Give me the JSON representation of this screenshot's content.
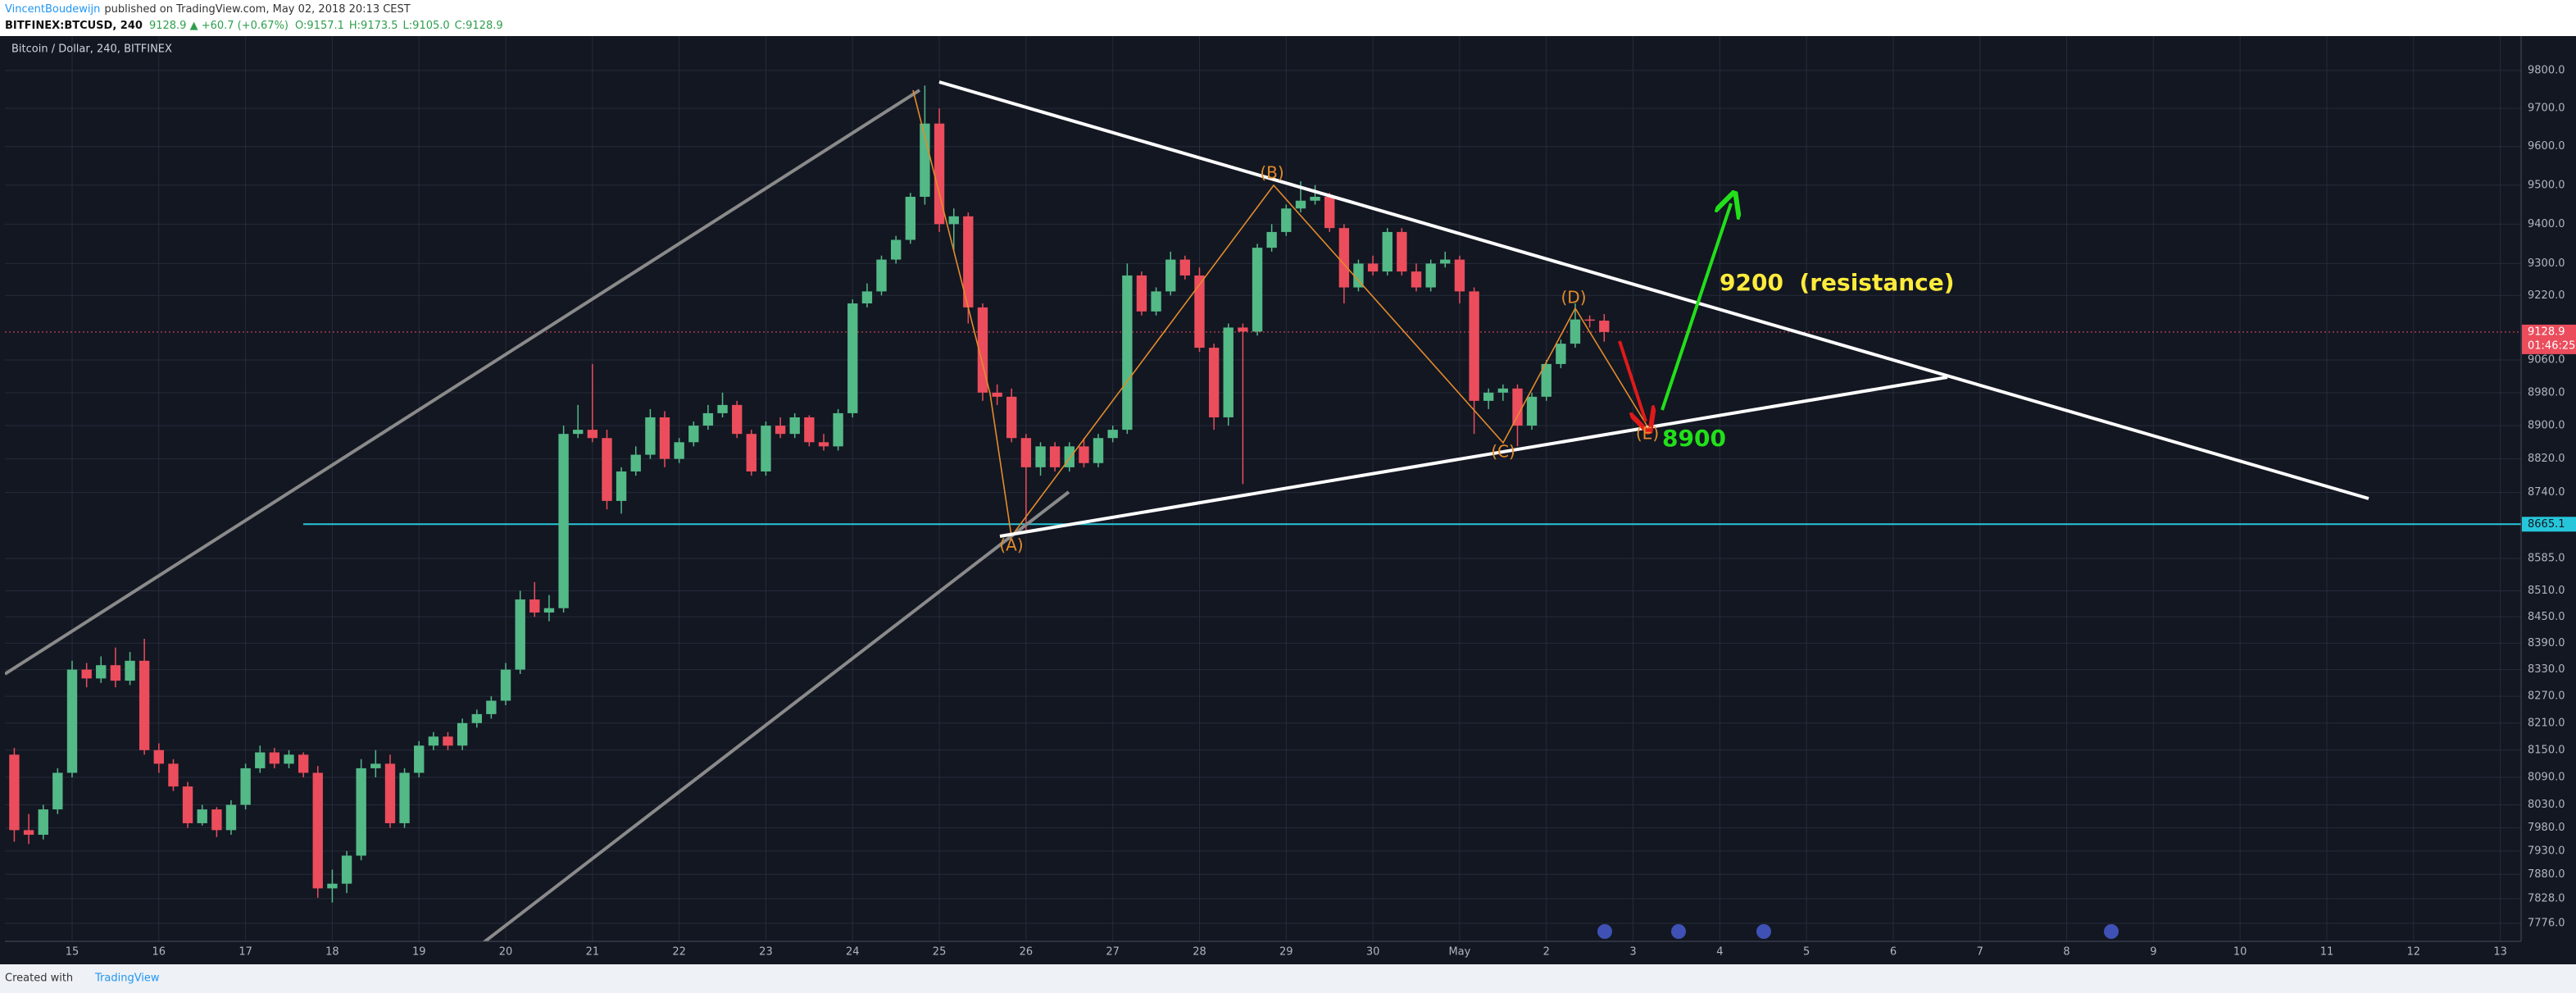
{
  "header": {
    "author": "VincentBoudewijn",
    "published": "published on TradingView.com, May 02, 2018 20:13 CEST",
    "symbol": "BITFINEX:BTCUSD, 240",
    "price": "9128.9 ▲ +60.7 (+0.67%)",
    "open": "O:9157.1",
    "high": "H:9173.5",
    "low": "L:9105.0",
    "close": "C:9128.9"
  },
  "footer": {
    "created": "Created with",
    "brand": "TradingView"
  },
  "chart_data": {
    "type": "candlestick",
    "title": "Bitcoin / Dollar, 240, BITFINEX",
    "log_scale": true,
    "grid": true,
    "up_color": "#53b987",
    "down_color": "#eb4d5c",
    "x": [
      14.333,
      14.5,
      14.667,
      14.833,
      15,
      15.167,
      15.333,
      15.5,
      15.667,
      15.833,
      16,
      16.167,
      16.333,
      16.5,
      16.667,
      16.833,
      17,
      17.167,
      17.333,
      17.5,
      17.667,
      17.833,
      18,
      18.167,
      18.333,
      18.5,
      18.667,
      18.833,
      19,
      19.167,
      19.333,
      19.5,
      19.667,
      19.833,
      20,
      20.167,
      20.333,
      20.5,
      20.667,
      20.833,
      21,
      21.167,
      21.333,
      21.5,
      21.667,
      21.833,
      22,
      22.167,
      22.333,
      22.5,
      22.667,
      22.833,
      23,
      23.167,
      23.333,
      23.5,
      23.667,
      23.833,
      24,
      24.167,
      24.333,
      24.5,
      24.667,
      24.833,
      25,
      25.167,
      25.333,
      25.5,
      25.667,
      25.833,
      26,
      26.167,
      26.333,
      26.5,
      26.667,
      26.833,
      27,
      27.167,
      27.333,
      27.5,
      27.667,
      27.833,
      28,
      28.167,
      28.333,
      28.5,
      28.667,
      28.833,
      29,
      29.167,
      29.333,
      29.5,
      29.667,
      29.833,
      30,
      30.167,
      30.333,
      30.5,
      30.667,
      30.833,
      31,
      31.167,
      31.333,
      31.5,
      31.667,
      31.833,
      32,
      32.167,
      32.333,
      32.5,
      32.667
    ],
    "open": [
      8140,
      7975,
      7965,
      8020,
      8100,
      8330,
      8310,
      8340,
      8305,
      8350,
      8150,
      8120,
      8070,
      7990,
      8020,
      7975,
      8030,
      8110,
      8145,
      8120,
      8140,
      8100,
      7850,
      7860,
      7920,
      8110,
      8120,
      7990,
      8100,
      8160,
      8180,
      8160,
      8210,
      8230,
      8260,
      8330,
      8490,
      8460,
      8470,
      8880,
      8890,
      8870,
      8720,
      8790,
      8830,
      8920,
      8820,
      8860,
      8900,
      8930,
      8950,
      8880,
      8790,
      8900,
      8880,
      8920,
      8860,
      8850,
      8930,
      9200,
      9230,
      9310,
      9360,
      9470,
      9660,
      9400,
      9420,
      9190,
      8980,
      8970,
      8870,
      8800,
      8850,
      8800,
      8850,
      8810,
      8870,
      8890,
      9270,
      9180,
      9230,
      9310,
      9270,
      9090,
      8920,
      9140,
      9130,
      9340,
      9380,
      9440,
      9460,
      9470,
      9390,
      9240,
      9300,
      9280,
      9380,
      9280,
      9240,
      9300,
      9310,
      9230,
      8960,
      8980,
      8990,
      8900,
      8970,
      9050,
      9100,
      9160,
      9157.1
    ],
    "high": [
      8155,
      8010,
      8030,
      8110,
      8350,
      8345,
      8360,
      8380,
      8370,
      8400,
      8165,
      8130,
      8080,
      8030,
      8025,
      8040,
      8120,
      8160,
      8155,
      8150,
      8145,
      8115,
      7890,
      7930,
      8130,
      8150,
      8140,
      8110,
      8170,
      8190,
      8190,
      8220,
      8240,
      8270,
      8345,
      8510,
      8530,
      8500,
      8900,
      8950,
      9050,
      8890,
      8800,
      8850,
      8940,
      8935,
      8870,
      8910,
      8950,
      8980,
      8960,
      8890,
      8910,
      8920,
      8930,
      8925,
      8880,
      8940,
      9210,
      9250,
      9320,
      9370,
      9480,
      9760,
      9700,
      9440,
      9430,
      9200,
      9000,
      8990,
      8880,
      8860,
      8860,
      8860,
      8870,
      8880,
      8900,
      9300,
      9280,
      9240,
      9330,
      9320,
      9290,
      9100,
      9150,
      9150,
      9350,
      9400,
      9450,
      9510,
      9500,
      9480,
      9400,
      9310,
      9320,
      9390,
      9390,
      9300,
      9310,
      9330,
      9320,
      9240,
      8990,
      9000,
      9000,
      8980,
      9060,
      9110,
      9200,
      9170,
      9173.5
    ],
    "low": [
      7950,
      7945,
      7955,
      8010,
      8090,
      8290,
      8300,
      8290,
      8295,
      8140,
      8100,
      8060,
      7980,
      7985,
      7960,
      7965,
      8020,
      8100,
      8110,
      8110,
      8090,
      7830,
      7820,
      7840,
      7910,
      8090,
      7980,
      7980,
      8090,
      8150,
      8150,
      8150,
      8200,
      8220,
      8250,
      8320,
      8450,
      8440,
      8460,
      8870,
      8860,
      8700,
      8690,
      8780,
      8820,
      8800,
      8810,
      8850,
      8890,
      8920,
      8870,
      8780,
      8780,
      8870,
      8870,
      8850,
      8840,
      8840,
      8920,
      9190,
      9220,
      9300,
      9350,
      9450,
      9380,
      9330,
      9150,
      8960,
      8950,
      8860,
      8650,
      8780,
      8790,
      8790,
      8800,
      8800,
      8860,
      8880,
      9170,
      9170,
      9220,
      9260,
      9080,
      8890,
      8900,
      8760,
      9120,
      9330,
      9370,
      9430,
      9450,
      9380,
      9200,
      9230,
      9270,
      9270,
      9270,
      9230,
      9230,
      9290,
      9200,
      8880,
      8940,
      8960,
      8850,
      8890,
      8960,
      9040,
      9090,
      9140,
      9105
    ],
    "close": [
      7975,
      7965,
      8020,
      8100,
      8330,
      8310,
      8340,
      8305,
      8350,
      8150,
      8120,
      8070,
      7990,
      8020,
      7975,
      8030,
      8110,
      8145,
      8120,
      8140,
      8100,
      7850,
      7860,
      7920,
      8110,
      8120,
      7990,
      8100,
      8160,
      8180,
      8160,
      8210,
      8230,
      8260,
      8330,
      8490,
      8460,
      8470,
      8880,
      8890,
      8870,
      8720,
      8790,
      8830,
      8920,
      8820,
      8860,
      8900,
      8930,
      8950,
      8880,
      8790,
      8900,
      8880,
      8920,
      8860,
      8850,
      8930,
      9200,
      9230,
      9310,
      9360,
      9470,
      9660,
      9400,
      9420,
      9190,
      8980,
      8970,
      8870,
      8800,
      8850,
      8800,
      8850,
      8810,
      8870,
      8890,
      9270,
      9180,
      9230,
      9310,
      9270,
      9090,
      8920,
      9140,
      9130,
      9340,
      9380,
      9440,
      9460,
      9470,
      9390,
      9240,
      9300,
      9280,
      9380,
      9280,
      9240,
      9300,
      9310,
      9230,
      8960,
      8980,
      8990,
      8900,
      8970,
      9050,
      9100,
      9160,
      9157.1,
      9128.9
    ],
    "xlim": [
      14.225,
      43.24
    ],
    "ylim": [
      7738,
      9892
    ],
    "xticks": [
      15,
      16,
      17,
      18,
      19,
      20,
      21,
      22,
      23,
      24,
      25,
      26,
      27,
      28,
      29,
      30,
      {
        "value": 31,
        "label": "May"
      },
      {
        "value": 32,
        "label": "2"
      },
      {
        "value": 33,
        "label": "3"
      },
      {
        "value": 34,
        "label": "4"
      },
      {
        "value": 35,
        "label": "5"
      },
      {
        "value": 36,
        "label": "6"
      },
      {
        "value": 37,
        "label": "7"
      },
      {
        "value": 38,
        "label": "8"
      },
      {
        "value": 39,
        "label": "9"
      },
      {
        "value": 40,
        "label": "10"
      },
      {
        "value": 41,
        "label": "11"
      },
      {
        "value": 42,
        "label": "12"
      },
      {
        "value": 43,
        "label": "13"
      }
    ],
    "yticks": [
      {
        "value": 9800,
        "label": "9800.0"
      },
      {
        "value": 9700,
        "label": "9700.0"
      },
      {
        "value": 9600,
        "label": "9600.0"
      },
      {
        "value": 9500,
        "label": "9500.0"
      },
      {
        "value": 9400,
        "label": "9400.0"
      },
      {
        "value": 9300,
        "label": "9300.0"
      },
      {
        "value": 9220,
        "label": "9220.0"
      },
      {
        "value": 9060,
        "label": "9060.0"
      },
      {
        "value": 8980,
        "label": "8980.0"
      },
      {
        "value": 8900,
        "label": "8900.0"
      },
      {
        "value": 8820,
        "label": "8820.0"
      },
      {
        "value": 8740,
        "label": "8740.0"
      },
      {
        "value": 8585,
        "label": "8585.0"
      },
      {
        "value": 8510,
        "label": "8510.0"
      },
      {
        "value": 8450,
        "label": "8450.0"
      },
      {
        "value": 8390,
        "label": "8390.0"
      },
      {
        "value": 8330,
        "label": "8330.0"
      },
      {
        "value": 8270,
        "label": "8270.0"
      },
      {
        "value": 8210,
        "label": "8210.0"
      },
      {
        "value": 8150,
        "label": "8150.0"
      },
      {
        "value": 8090,
        "label": "8090.0"
      },
      {
        "value": 8030,
        "label": "8030.0"
      },
      {
        "value": 7980,
        "label": "7980.0"
      },
      {
        "value": 7930,
        "label": "7930.0"
      },
      {
        "value": 7880,
        "label": "7880.0"
      },
      {
        "value": 7828,
        "label": "7828.0"
      },
      {
        "value": 7776,
        "label": "7776.0"
      }
    ],
    "horizontal_line": {
      "value": 8665.1,
      "color": "#26c6da"
    },
    "last_price": {
      "value": 9128.9,
      "color": "#eb4d5c"
    },
    "countdown": "01:46:25",
    "annotations": {
      "a": "(A)",
      "b": "(B)",
      "c": "(C)",
      "d": "(D)",
      "e": "(E)",
      "resistance": "9200  (resistance)",
      "support": "8900"
    }
  }
}
